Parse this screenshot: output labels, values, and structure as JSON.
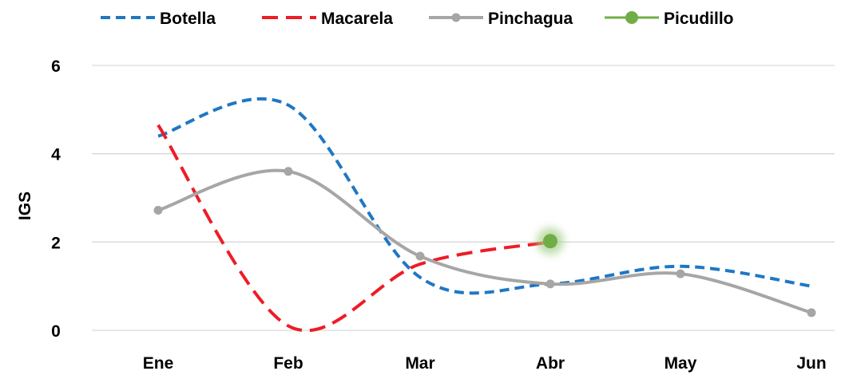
{
  "chart_data": {
    "type": "line",
    "categories": [
      "Ene",
      "Feb",
      "Mar",
      "Abr",
      "May",
      "Jun"
    ],
    "ylabel": "IGS",
    "ylim": [
      0,
      6
    ],
    "yticks": [
      0,
      2,
      4,
      6
    ],
    "grid": true,
    "legend_position": "top",
    "series": [
      {
        "name": "Botella",
        "color": "#1f77c4",
        "style": "dashed",
        "markers": false,
        "values": [
          4.4,
          5.1,
          1.2,
          1.05,
          1.45,
          1.0
        ]
      },
      {
        "name": "Macarela",
        "color": "#ee1c25",
        "style": "dashed",
        "markers": false,
        "values": [
          4.65,
          0.1,
          1.5,
          2.0,
          null,
          null
        ]
      },
      {
        "name": "Pinchagua",
        "color": "#a6a6a6",
        "style": "solid",
        "markers": true,
        "values": [
          2.72,
          3.6,
          1.68,
          1.05,
          1.28,
          0.4
        ]
      },
      {
        "name": "Picudillo",
        "color": "#70ad47",
        "style": "marker-only",
        "markers": true,
        "values": [
          null,
          null,
          null,
          2.02,
          null,
          null
        ]
      }
    ]
  }
}
